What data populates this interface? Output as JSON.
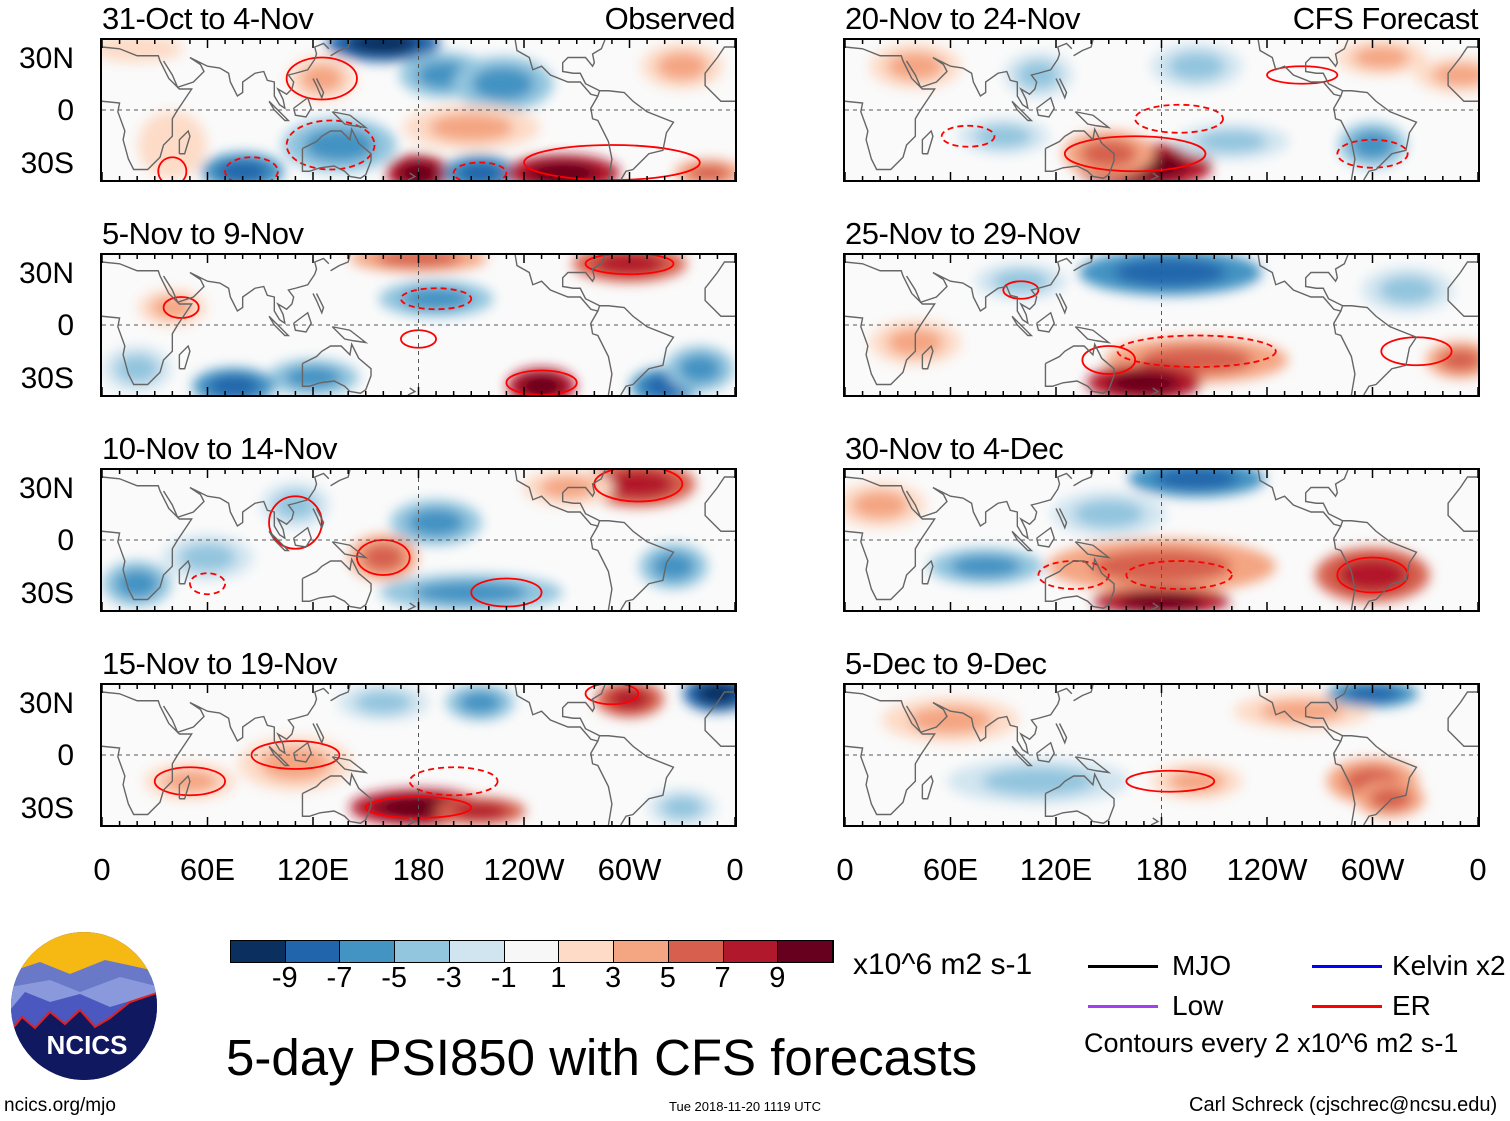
{
  "panels": [
    {
      "title": "31-Oct to 4-Nov",
      "tag": "Observed"
    },
    {
      "title": "20-Nov to 24-Nov",
      "tag": "CFS Forecast"
    },
    {
      "title": "5-Nov to 9-Nov"
    },
    {
      "title": "25-Nov to 29-Nov"
    },
    {
      "title": "10-Nov to 14-Nov"
    },
    {
      "title": "30-Nov to 4-Dec"
    },
    {
      "title": "15-Nov to 19-Nov"
    },
    {
      "title": "5-Dec to 9-Dec"
    }
  ],
  "y_ticks": [
    "30N",
    "0",
    "30S"
  ],
  "x_ticks": [
    "0",
    "60E",
    "120E",
    "180",
    "120W",
    "60W",
    "0"
  ],
  "colorbar": {
    "labels": [
      "-9",
      "-7",
      "-5",
      "-3",
      "-1",
      "1",
      "3",
      "5",
      "7",
      "9"
    ],
    "colors": [
      "#0b2f5e",
      "#2166ac",
      "#4393c3",
      "#92c5de",
      "#d1e5f0",
      "#f7f7f7",
      "#fddbc7",
      "#f4a582",
      "#d6604d",
      "#b2182b",
      "#67001f"
    ],
    "units": "x10^6 m2 s-1"
  },
  "legend": {
    "items": [
      {
        "label": "MJO",
        "color": "#000000"
      },
      {
        "label": "Kelvin x2",
        "color": "#0000ff"
      },
      {
        "label": "Low",
        "color": "#a040f0"
      },
      {
        "label": "ER",
        "color": "#ff0000"
      }
    ],
    "note": "Contours every 2 x10^6 m2 s-1"
  },
  "title": "5-day PSI850 with CFS forecasts",
  "logo_text": "NCICS",
  "footer": {
    "left": "ncics.org/mjo",
    "center": "Tue 2018-11-20 1119 UTC",
    "right": "Carl Schreck (cjschrec@ncsu.edu)"
  },
  "chart_data": {
    "type": "heatmap",
    "title": "5-day PSI850 with CFS forecasts",
    "variable": "850-hPa streamfunction anomaly",
    "units": "x10^6 m2 s-1",
    "xlim": [
      "0",
      "0"
    ],
    "ylim": [
      "40S",
      "40N"
    ],
    "contour_interval": 2,
    "levels": [
      -11,
      -9,
      -7,
      -5,
      -3,
      -1,
      1,
      3,
      5,
      7,
      9,
      11
    ]
  }
}
